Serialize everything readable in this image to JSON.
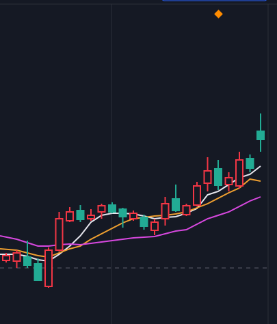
{
  "chart_data": {
    "type": "candlestick",
    "up_color": "#f23645",
    "down_color": "#22ab94",
    "ylim": [
      0,
      474
    ],
    "open": [
      93,
      92,
      98,
      88,
      55,
      108,
      151,
      166,
      154,
      164,
      174,
      168,
      154,
      156,
      137,
      154,
      183,
      160,
      174,
      206,
      227,
      204,
      202,
      242,
      282
    ],
    "high": [
      104,
      108,
      122,
      96,
      112,
      164,
      171,
      174,
      168,
      176,
      178,
      170,
      166,
      160,
      154,
      186,
      204,
      176,
      208,
      244,
      240,
      222,
      252,
      248,
      308
    ],
    "low": [
      90,
      82,
      82,
      64,
      53,
      106,
      149,
      149,
      151,
      154,
      162,
      141,
      151,
      138,
      130,
      144,
      164,
      158,
      172,
      194,
      196,
      194,
      198,
      222,
      252
    ],
    "close": [
      100,
      104,
      86,
      64,
      108,
      154,
      164,
      153,
      159,
      173,
      164,
      157,
      162,
      143,
      149,
      176,
      166,
      173,
      202,
      224,
      203,
      214,
      240,
      228,
      270
    ],
    "lines": [
      {
        "color": "#e6e6ee",
        "values": [
          102,
          102,
          99,
          94,
          92,
          102,
          114,
          129,
          149,
          159,
          162,
          162,
          161,
          158,
          154,
          156,
          157,
          162,
          169,
          189,
          194,
          204,
          214,
          219,
          231
        ]
      },
      {
        "color": "#f0a030",
        "values": [
          110,
          108,
          104,
          100,
          98,
          104,
          110,
          114,
          124,
          132,
          140,
          148,
          154,
          156,
          158,
          159,
          161,
          164,
          170,
          176,
          184,
          192,
          199,
          212,
          209
        ]
      },
      {
        "color": "#d848e0",
        "values": [
          129,
          124,
          119,
          114,
          114,
          116,
          117,
          116,
          118,
          120,
          122,
          124,
          126,
          127,
          128,
          132,
          136,
          138,
          146,
          154,
          159,
          164,
          172,
          180,
          186
        ]
      }
    ]
  }
}
